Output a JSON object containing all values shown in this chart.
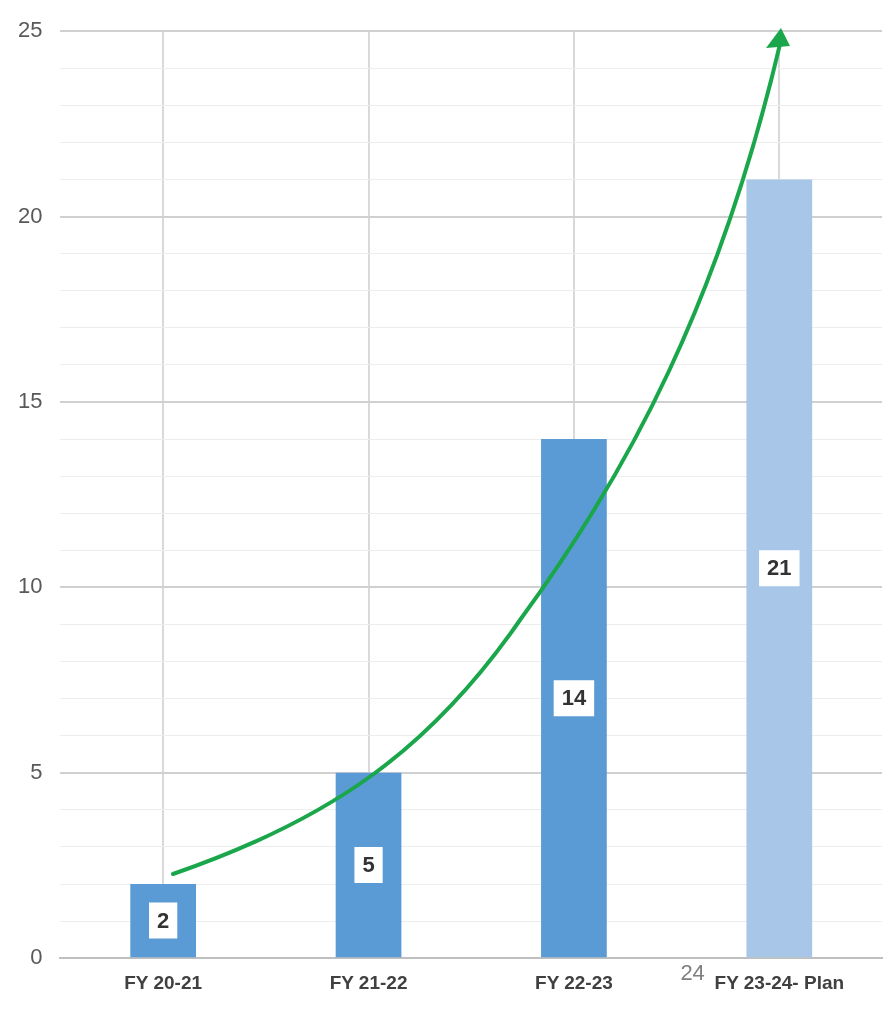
{
  "chart_data": {
    "type": "bar",
    "categories": [
      "FY 20-21",
      "FY 21-22",
      "FY 22-23",
      "FY 23-24- Plan"
    ],
    "values": [
      2,
      5,
      14,
      21
    ],
    "colors": [
      "#5b9bd5",
      "#5b9bd5",
      "#5b9bd5",
      "#a7c6e8"
    ],
    "ylim": [
      0,
      25
    ],
    "yticks": [
      0,
      {
        "value": 1,
        "label": null
      },
      {
        "value": 2,
        "label": null
      },
      {
        "value": 3,
        "label": null
      },
      {
        "value": 4,
        "label": null
      },
      5,
      {
        "value": 6,
        "label": null
      },
      {
        "value": 7,
        "label": null
      },
      {
        "value": 8,
        "label": null
      },
      {
        "value": 9,
        "label": null
      },
      10,
      {
        "value": 11,
        "label": null
      },
      {
        "value": 12,
        "label": null
      },
      {
        "value": 13,
        "label": null
      },
      {
        "value": 14,
        "label": null
      },
      15,
      {
        "value": 16,
        "label": null
      },
      {
        "value": 17,
        "label": null
      },
      {
        "value": 18,
        "label": null
      },
      {
        "value": 19,
        "label": null
      },
      20,
      {
        "value": 21,
        "label": null
      },
      {
        "value": 22,
        "label": null
      },
      {
        "value": 23,
        "label": null
      },
      {
        "value": 24,
        "label": null
      },
      25
    ],
    "grid": true,
    "data_labels": true,
    "annotations": [
      "24"
    ]
  }
}
